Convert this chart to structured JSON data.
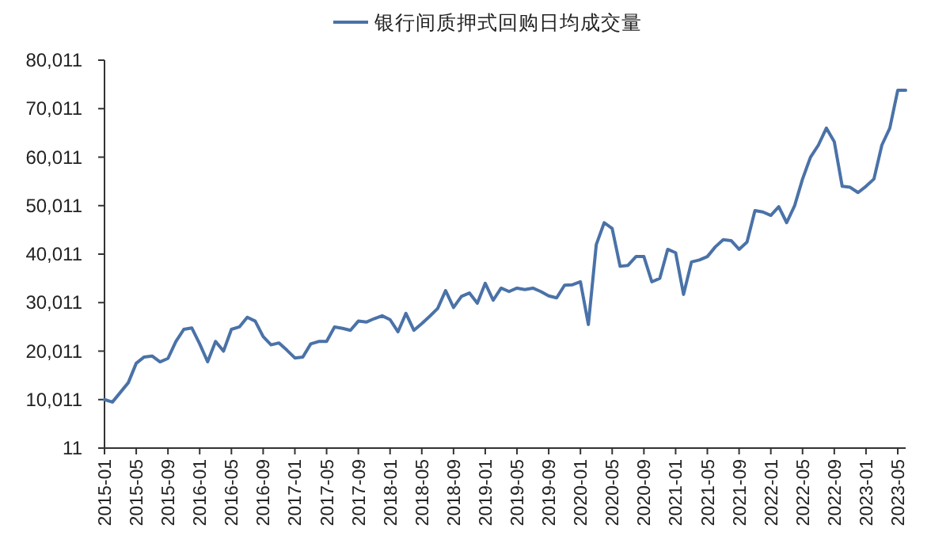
{
  "chart_data": {
    "type": "line",
    "x": [
      "2015-01",
      "2015-02",
      "2015-03",
      "2015-04",
      "2015-05",
      "2015-06",
      "2015-07",
      "2015-08",
      "2015-09",
      "2015-10",
      "2015-11",
      "2015-12",
      "2016-01",
      "2016-02",
      "2016-03",
      "2016-04",
      "2016-05",
      "2016-06",
      "2016-07",
      "2016-08",
      "2016-09",
      "2016-10",
      "2016-11",
      "2016-12",
      "2017-01",
      "2017-02",
      "2017-03",
      "2017-04",
      "2017-05",
      "2017-06",
      "2017-07",
      "2017-08",
      "2017-09",
      "2017-10",
      "2017-11",
      "2017-12",
      "2018-01",
      "2018-02",
      "2018-03",
      "2018-04",
      "2018-05",
      "2018-06",
      "2018-07",
      "2018-08",
      "2018-09",
      "2018-10",
      "2018-11",
      "2018-12",
      "2019-01",
      "2019-02",
      "2019-03",
      "2019-04",
      "2019-05",
      "2019-06",
      "2019-07",
      "2019-08",
      "2019-09",
      "2019-10",
      "2019-11",
      "2019-12",
      "2020-01",
      "2020-02",
      "2020-03",
      "2020-04",
      "2020-05",
      "2020-06",
      "2020-07",
      "2020-08",
      "2020-09",
      "2020-10",
      "2020-11",
      "2020-12",
      "2021-01",
      "2021-02",
      "2021-03",
      "2021-04",
      "2021-05",
      "2021-06",
      "2021-07",
      "2021-08",
      "2021-09",
      "2021-10",
      "2021-11",
      "2021-12",
      "2022-01",
      "2022-02",
      "2022-03",
      "2022-04",
      "2022-05",
      "2022-06",
      "2022-07",
      "2022-08",
      "2022-09",
      "2022-10",
      "2022-11",
      "2022-12",
      "2023-01",
      "2023-02",
      "2023-03",
      "2023-04",
      "2023-05",
      "2023-06"
    ],
    "series": [
      {
        "name": "银行间质押式回购日均成交量",
        "color": "#4a72a8",
        "values": [
          10011,
          9500,
          11500,
          13500,
          17500,
          18800,
          19000,
          17800,
          18500,
          22000,
          24500,
          24800,
          21500,
          17800,
          22000,
          20000,
          24500,
          25000,
          27000,
          26200,
          23000,
          21300,
          21700,
          20200,
          18600,
          18800,
          21500,
          22000,
          22000,
          25000,
          24700,
          24300,
          26200,
          26000,
          26700,
          27300,
          26500,
          24000,
          27800,
          24300,
          25700,
          27200,
          28800,
          32500,
          29000,
          31300,
          32000,
          29900,
          34000,
          30500,
          33000,
          32300,
          33000,
          32700,
          33000,
          32300,
          31400,
          31000,
          33600,
          33700,
          34300,
          25500,
          42000,
          46500,
          45300,
          37500,
          37700,
          39500,
          39500,
          34300,
          35000,
          41000,
          40300,
          31700,
          38400,
          38800,
          39500,
          41500,
          43000,
          42800,
          41000,
          42500,
          49000,
          48700,
          48000,
          49800,
          46500,
          50000,
          55500,
          60000,
          62500,
          66000,
          63200,
          54000,
          53800,
          52700,
          54000,
          55500,
          62500,
          66000,
          73800,
          73800
        ]
      }
    ],
    "xlim": [
      "2015-01",
      "2023-06"
    ],
    "xticks": [
      "2015-01",
      "2015-05",
      "2015-09",
      "2016-01",
      "2016-05",
      "2016-09",
      "2017-01",
      "2017-05",
      "2017-09",
      "2018-01",
      "2018-05",
      "2018-09",
      "2019-01",
      "2019-05",
      "2019-09",
      "2020-01",
      "2020-05",
      "2020-09",
      "2021-01",
      "2021-05",
      "2021-09",
      "2022-01",
      "2022-05",
      "2022-09",
      "2023-01",
      "2023-05"
    ],
    "ylim": [
      11,
      80011
    ],
    "yticks": [
      11,
      {
        "value": 10011,
        "label": "10,011"
      },
      {
        "value": 20011,
        "label": "20,011"
      },
      {
        "value": 30011,
        "label": "30,011"
      },
      {
        "value": 40011,
        "label": "40,011"
      },
      {
        "value": 50011,
        "label": "50,011"
      },
      {
        "value": 60011,
        "label": "60,011"
      },
      {
        "value": 70011,
        "label": "70,011"
      },
      {
        "value": 80011,
        "label": "80,011"
      }
    ],
    "grid": false,
    "legend": "top",
    "line_style": "solid",
    "marker": "none"
  }
}
